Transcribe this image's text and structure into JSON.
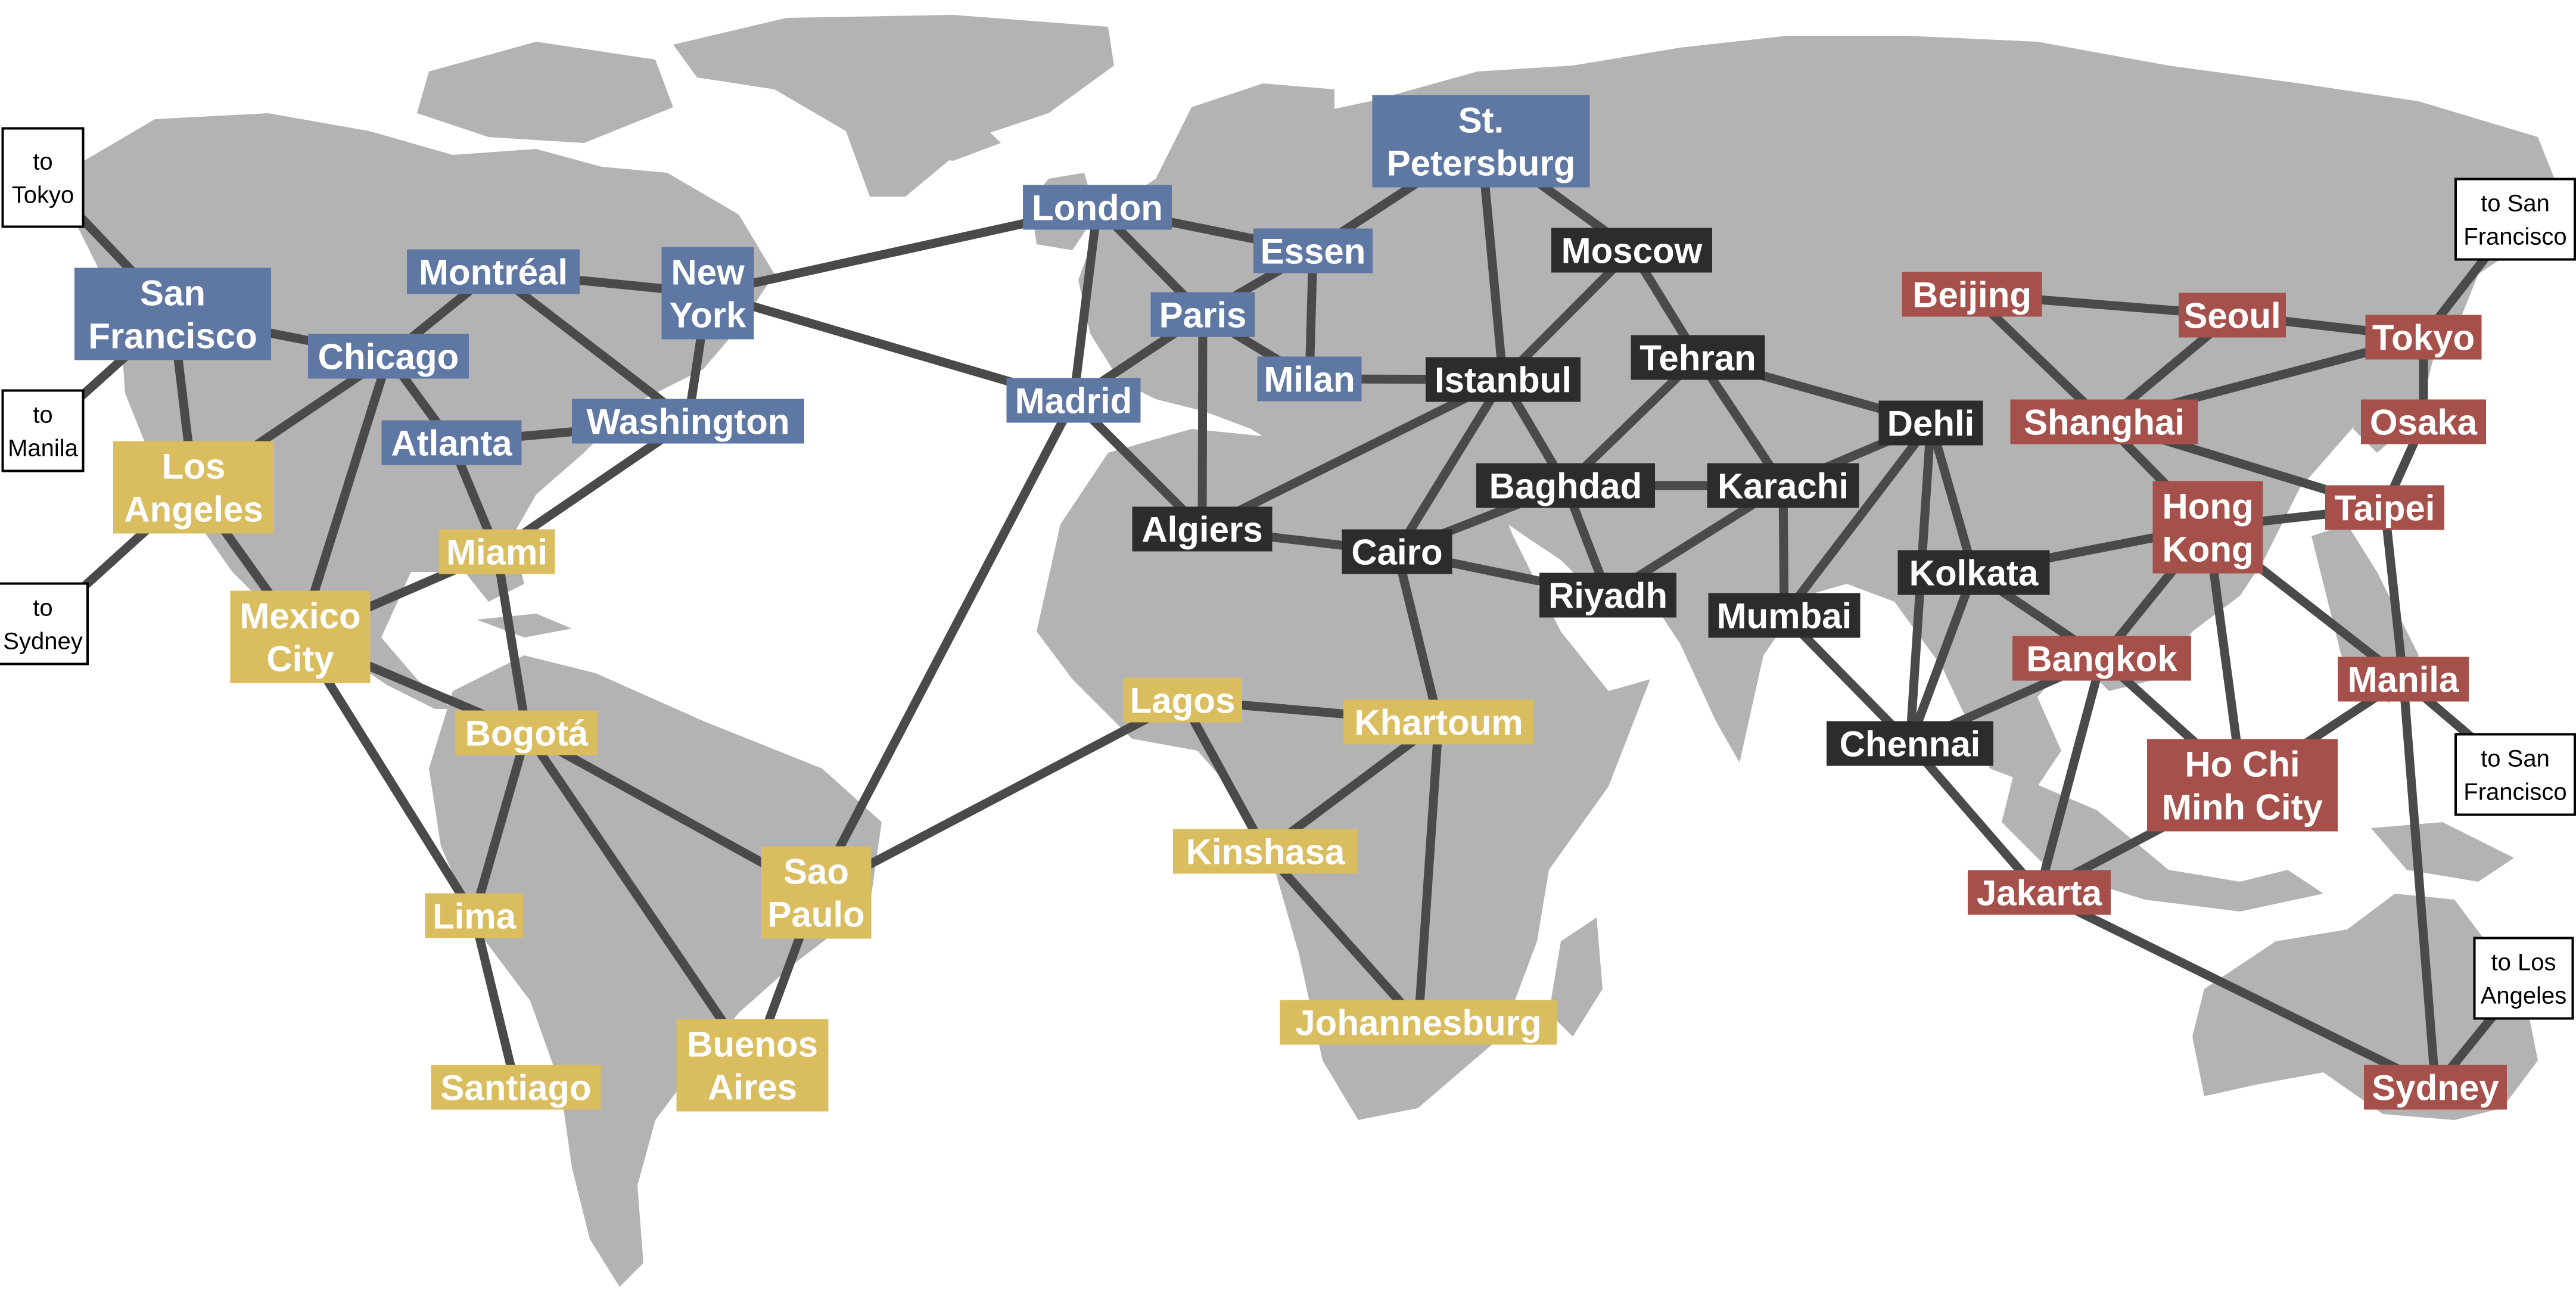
{
  "colors": {
    "blue": "#5f77a3",
    "yellow": "#d9bd5f",
    "black": "#2c2c2c",
    "red": "#a6504b",
    "land": "#b3b3b3",
    "route": "#4a4a4a"
  },
  "cities": [
    {
      "id": "san-francisco",
      "lines": [
        "San",
        "Francisco"
      ],
      "color": "blue"
    },
    {
      "id": "chicago",
      "lines": [
        "Chicago"
      ],
      "color": "blue"
    },
    {
      "id": "montreal",
      "lines": [
        "Montréal"
      ],
      "color": "blue"
    },
    {
      "id": "new-york",
      "lines": [
        "New",
        "York"
      ],
      "color": "blue"
    },
    {
      "id": "atlanta",
      "lines": [
        "Atlanta"
      ],
      "color": "blue"
    },
    {
      "id": "washington",
      "lines": [
        "Washington"
      ],
      "color": "blue"
    },
    {
      "id": "london",
      "lines": [
        "London"
      ],
      "color": "blue"
    },
    {
      "id": "essen",
      "lines": [
        "Essen"
      ],
      "color": "blue"
    },
    {
      "id": "st-petersburg",
      "lines": [
        "St.",
        "Petersburg"
      ],
      "color": "blue"
    },
    {
      "id": "paris",
      "lines": [
        "Paris"
      ],
      "color": "blue"
    },
    {
      "id": "milan",
      "lines": [
        "Milan"
      ],
      "color": "blue"
    },
    {
      "id": "madrid",
      "lines": [
        "Madrid"
      ],
      "color": "blue"
    },
    {
      "id": "los-angeles",
      "lines": [
        "Los",
        "Angeles"
      ],
      "color": "yellow"
    },
    {
      "id": "miami",
      "lines": [
        "Miami"
      ],
      "color": "yellow"
    },
    {
      "id": "mexico-city",
      "lines": [
        "Mexico",
        "City"
      ],
      "color": "yellow"
    },
    {
      "id": "bogota",
      "lines": [
        "Bogotá"
      ],
      "color": "yellow"
    },
    {
      "id": "lima",
      "lines": [
        "Lima"
      ],
      "color": "yellow"
    },
    {
      "id": "santiago",
      "lines": [
        "Santiago"
      ],
      "color": "yellow"
    },
    {
      "id": "sao-paulo",
      "lines": [
        "Sao",
        "Paulo"
      ],
      "color": "yellow"
    },
    {
      "id": "buenos-aires",
      "lines": [
        "Buenos",
        "Aires"
      ],
      "color": "yellow"
    },
    {
      "id": "lagos",
      "lines": [
        "Lagos"
      ],
      "color": "yellow"
    },
    {
      "id": "khartoum",
      "lines": [
        "Khartoum"
      ],
      "color": "yellow"
    },
    {
      "id": "kinshasa",
      "lines": [
        "Kinshasa"
      ],
      "color": "yellow"
    },
    {
      "id": "johannesburg",
      "lines": [
        "Johannesburg"
      ],
      "color": "yellow"
    },
    {
      "id": "moscow",
      "lines": [
        "Moscow"
      ],
      "color": "black"
    },
    {
      "id": "istanbul",
      "lines": [
        "Istanbul"
      ],
      "color": "black"
    },
    {
      "id": "tehran",
      "lines": [
        "Tehran"
      ],
      "color": "black"
    },
    {
      "id": "algiers",
      "lines": [
        "Algiers"
      ],
      "color": "black"
    },
    {
      "id": "cairo",
      "lines": [
        "Cairo"
      ],
      "color": "black"
    },
    {
      "id": "baghdad",
      "lines": [
        "Baghdad"
      ],
      "color": "black"
    },
    {
      "id": "karachi",
      "lines": [
        "Karachi"
      ],
      "color": "black"
    },
    {
      "id": "riyadh",
      "lines": [
        "Riyadh"
      ],
      "color": "black"
    },
    {
      "id": "dehli",
      "lines": [
        "Dehli"
      ],
      "color": "black"
    },
    {
      "id": "mumbai",
      "lines": [
        "Mumbai"
      ],
      "color": "black"
    },
    {
      "id": "kolkata",
      "lines": [
        "Kolkata"
      ],
      "color": "black"
    },
    {
      "id": "chennai",
      "lines": [
        "Chennai"
      ],
      "color": "black"
    },
    {
      "id": "beijing",
      "lines": [
        "Beijing"
      ],
      "color": "red"
    },
    {
      "id": "seoul",
      "lines": [
        "Seoul"
      ],
      "color": "red"
    },
    {
      "id": "tokyo",
      "lines": [
        "Tokyo"
      ],
      "color": "red"
    },
    {
      "id": "shanghai",
      "lines": [
        "Shanghai"
      ],
      "color": "red"
    },
    {
      "id": "osaka",
      "lines": [
        "Osaka"
      ],
      "color": "red"
    },
    {
      "id": "hong-kong",
      "lines": [
        "Hong",
        "Kong"
      ],
      "color": "red"
    },
    {
      "id": "taipei",
      "lines": [
        "Taipei"
      ],
      "color": "red"
    },
    {
      "id": "bangkok",
      "lines": [
        "Bangkok"
      ],
      "color": "red"
    },
    {
      "id": "manila",
      "lines": [
        "Manila"
      ],
      "color": "red"
    },
    {
      "id": "ho-chi-minh-city",
      "lines": [
        "Ho Chi",
        "Minh City"
      ],
      "color": "red"
    },
    {
      "id": "jakarta",
      "lines": [
        "Jakarta"
      ],
      "color": "red"
    },
    {
      "id": "sydney",
      "lines": [
        "Sydney"
      ],
      "color": "red"
    }
  ],
  "external_labels": [
    {
      "id": "ext-to-tokyo",
      "lines": [
        "to",
        "Tokyo"
      ]
    },
    {
      "id": "ext-to-manila",
      "lines": [
        "to",
        "Manila"
      ]
    },
    {
      "id": "ext-to-sydney",
      "lines": [
        "to",
        "Sydney"
      ]
    },
    {
      "id": "ext-to-san-francisco-1",
      "lines": [
        "to San",
        "Francisco"
      ]
    },
    {
      "id": "ext-to-san-francisco-2",
      "lines": [
        "to San",
        "Francisco"
      ]
    },
    {
      "id": "ext-to-los-angeles",
      "lines": [
        "to Los",
        "Angeles"
      ]
    }
  ],
  "routes": [
    [
      "san-francisco",
      "ext-to-tokyo"
    ],
    [
      "san-francisco",
      "ext-to-manila"
    ],
    [
      "los-angeles",
      "ext-to-sydney"
    ],
    [
      "tokyo",
      "ext-to-san-francisco-1"
    ],
    [
      "manila",
      "ext-to-san-francisco-2"
    ],
    [
      "sydney",
      "ext-to-los-angeles"
    ],
    [
      "san-francisco",
      "chicago"
    ],
    [
      "san-francisco",
      "los-angeles"
    ],
    [
      "chicago",
      "montreal"
    ],
    [
      "chicago",
      "los-angeles"
    ],
    [
      "chicago",
      "atlanta"
    ],
    [
      "chicago",
      "mexico-city"
    ],
    [
      "montreal",
      "new-york"
    ],
    [
      "montreal",
      "washington"
    ],
    [
      "new-york",
      "washington"
    ],
    [
      "new-york",
      "london"
    ],
    [
      "new-york",
      "madrid"
    ],
    [
      "atlanta",
      "washington"
    ],
    [
      "atlanta",
      "miami"
    ],
    [
      "washington",
      "miami"
    ],
    [
      "los-angeles",
      "mexico-city"
    ],
    [
      "miami",
      "mexico-city"
    ],
    [
      "miami",
      "bogota"
    ],
    [
      "mexico-city",
      "bogota"
    ],
    [
      "mexico-city",
      "lima"
    ],
    [
      "bogota",
      "lima"
    ],
    [
      "bogota",
      "sao-paulo"
    ],
    [
      "bogota",
      "buenos-aires"
    ],
    [
      "lima",
      "santiago"
    ],
    [
      "sao-paulo",
      "buenos-aires"
    ],
    [
      "sao-paulo",
      "madrid"
    ],
    [
      "sao-paulo",
      "lagos"
    ],
    [
      "london",
      "essen"
    ],
    [
      "london",
      "paris"
    ],
    [
      "london",
      "madrid"
    ],
    [
      "essen",
      "paris"
    ],
    [
      "essen",
      "milan"
    ],
    [
      "essen",
      "st-petersburg"
    ],
    [
      "paris",
      "milan"
    ],
    [
      "paris",
      "madrid"
    ],
    [
      "paris",
      "algiers"
    ],
    [
      "madrid",
      "algiers"
    ],
    [
      "milan",
      "istanbul"
    ],
    [
      "st-petersburg",
      "istanbul"
    ],
    [
      "st-petersburg",
      "moscow"
    ],
    [
      "moscow",
      "istanbul"
    ],
    [
      "moscow",
      "tehran"
    ],
    [
      "istanbul",
      "algiers"
    ],
    [
      "istanbul",
      "cairo"
    ],
    [
      "istanbul",
      "baghdad"
    ],
    [
      "tehran",
      "baghdad"
    ],
    [
      "tehran",
      "karachi"
    ],
    [
      "tehran",
      "dehli"
    ],
    [
      "algiers",
      "cairo"
    ],
    [
      "cairo",
      "baghdad"
    ],
    [
      "cairo",
      "riyadh"
    ],
    [
      "cairo",
      "khartoum"
    ],
    [
      "baghdad",
      "karachi"
    ],
    [
      "baghdad",
      "riyadh"
    ],
    [
      "karachi",
      "riyadh"
    ],
    [
      "karachi",
      "mumbai"
    ],
    [
      "karachi",
      "dehli"
    ],
    [
      "dehli",
      "mumbai"
    ],
    [
      "dehli",
      "kolkata"
    ],
    [
      "dehli",
      "chennai"
    ],
    [
      "mumbai",
      "chennai"
    ],
    [
      "kolkata",
      "chennai"
    ],
    [
      "kolkata",
      "hong-kong"
    ],
    [
      "kolkata",
      "bangkok"
    ],
    [
      "chennai",
      "bangkok"
    ],
    [
      "chennai",
      "jakarta"
    ],
    [
      "lagos",
      "khartoum"
    ],
    [
      "lagos",
      "kinshasa"
    ],
    [
      "khartoum",
      "kinshasa"
    ],
    [
      "khartoum",
      "johannesburg"
    ],
    [
      "kinshasa",
      "johannesburg"
    ],
    [
      "beijing",
      "seoul"
    ],
    [
      "beijing",
      "shanghai"
    ],
    [
      "seoul",
      "shanghai"
    ],
    [
      "seoul",
      "tokyo"
    ],
    [
      "shanghai",
      "tokyo"
    ],
    [
      "shanghai",
      "hong-kong"
    ],
    [
      "shanghai",
      "taipei"
    ],
    [
      "tokyo",
      "osaka"
    ],
    [
      "osaka",
      "taipei"
    ],
    [
      "hong-kong",
      "taipei"
    ],
    [
      "hong-kong",
      "bangkok"
    ],
    [
      "hong-kong",
      "ho-chi-minh-city"
    ],
    [
      "hong-kong",
      "manila"
    ],
    [
      "taipei",
      "manila"
    ],
    [
      "bangkok",
      "ho-chi-minh-city"
    ],
    [
      "bangkok",
      "jakarta"
    ],
    [
      "manila",
      "ho-chi-minh-city"
    ],
    [
      "manila",
      "sydney"
    ],
    [
      "ho-chi-minh-city",
      "jakarta"
    ],
    [
      "jakarta",
      "sydney"
    ]
  ]
}
